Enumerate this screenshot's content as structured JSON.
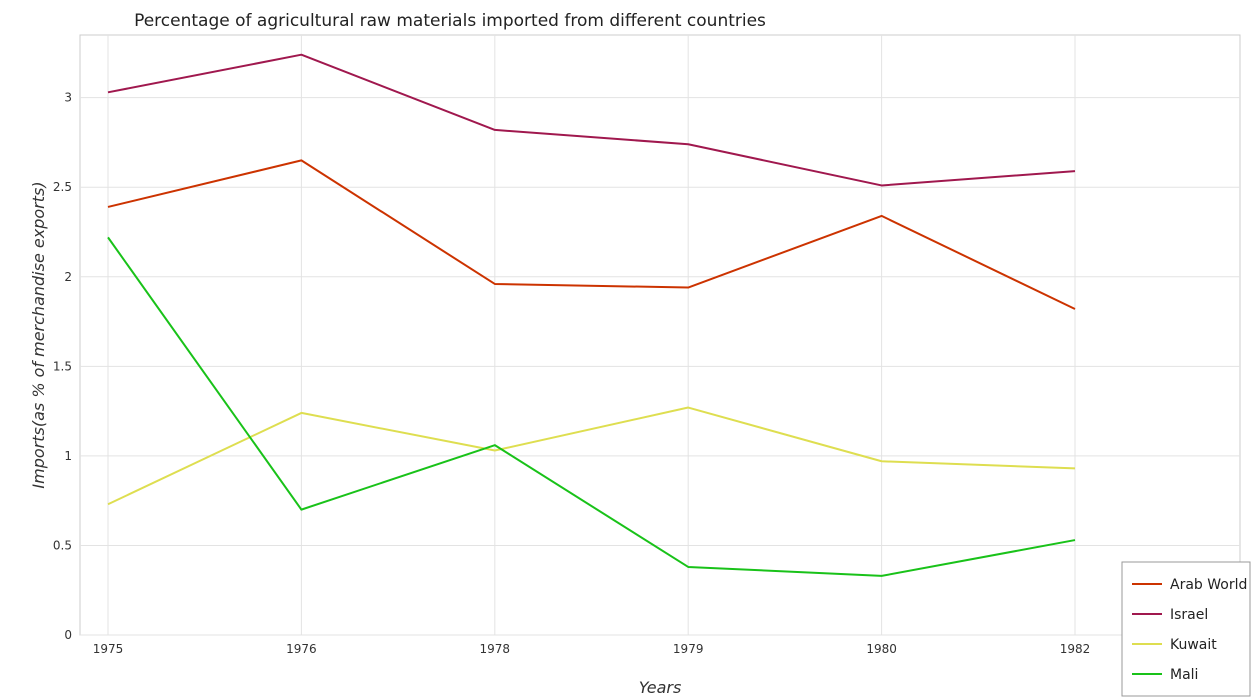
{
  "chart_data": {
    "type": "line",
    "title": "Percentage of agricultural raw materials imported from different countries",
    "xlabel": "Years",
    "ylabel": "Imports(as % of merchandise exports)",
    "categories": [
      "1975",
      "1976",
      "1978",
      "1979",
      "1980",
      "1982"
    ],
    "ylim": [
      0,
      3.35
    ],
    "yticks": [
      "0",
      "0.5",
      "1",
      "1.5",
      "2",
      "2.5",
      "3"
    ],
    "grid": true,
    "legend_position": "bottom-right",
    "series": [
      {
        "name": "Arab World",
        "color": "#cc3300",
        "values": [
          2.39,
          2.65,
          1.96,
          1.94,
          2.34,
          1.82
        ]
      },
      {
        "name": "Israel",
        "color": "#a0184e",
        "values": [
          3.03,
          3.24,
          2.82,
          2.74,
          2.51,
          2.59
        ]
      },
      {
        "name": "Kuwait",
        "color": "#dede50",
        "values": [
          0.73,
          1.24,
          1.03,
          1.27,
          0.97,
          0.93
        ]
      },
      {
        "name": "Mali",
        "color": "#19c219",
        "values": [
          2.22,
          0.7,
          1.06,
          0.38,
          0.33,
          0.53
        ]
      }
    ]
  }
}
